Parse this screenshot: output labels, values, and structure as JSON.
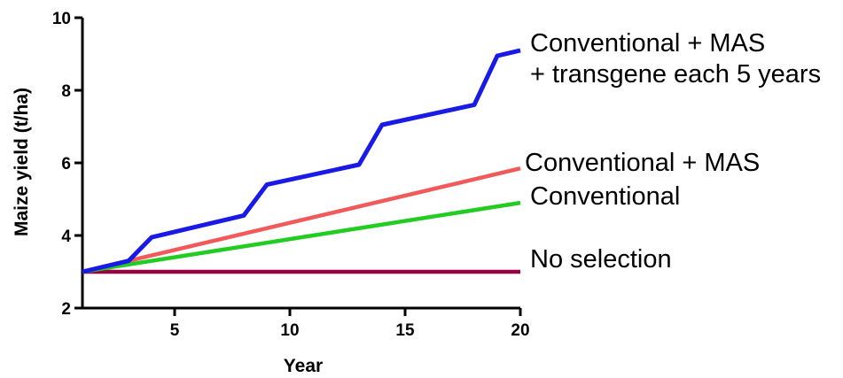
{
  "chart_data": {
    "type": "line",
    "xlabel": "Year",
    "ylabel": "Maize yield (t/ha)",
    "xlim": [
      1,
      20
    ],
    "ylim": [
      2,
      10
    ],
    "xticks": [
      5,
      10,
      15,
      20
    ],
    "yticks": [
      2,
      4,
      6,
      8,
      10
    ],
    "grid": false,
    "series": [
      {
        "key": "transgene",
        "label_lines": [
          "Conventional + MAS",
          "+ transgene each 5 years"
        ],
        "color": "#1a1ae6",
        "x": [
          1,
          3,
          4,
          8,
          9,
          13,
          14,
          18,
          19,
          20
        ],
        "y": [
          3.0,
          3.3,
          3.95,
          4.55,
          5.4,
          5.95,
          7.05,
          7.6,
          8.95,
          9.1
        ]
      },
      {
        "key": "mas",
        "label_lines": [
          "Conventional + MAS"
        ],
        "color": "#f05a5a",
        "x": [
          1,
          20
        ],
        "y": [
          3.0,
          5.85
        ]
      },
      {
        "key": "conventional",
        "label_lines": [
          "Conventional"
        ],
        "color": "#22cc22",
        "x": [
          1,
          20
        ],
        "y": [
          3.0,
          4.9
        ]
      },
      {
        "key": "none",
        "label_lines": [
          "No selection"
        ],
        "color": "#990044",
        "x": [
          1,
          20
        ],
        "y": [
          3.0,
          3.0
        ]
      }
    ]
  }
}
